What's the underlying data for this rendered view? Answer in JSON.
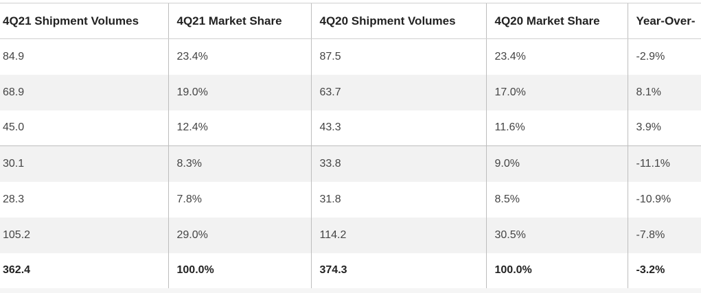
{
  "table": {
    "headers": [
      "4Q21 Shipment Volumes",
      "4Q21 Market Share",
      "4Q20 Shipment Volumes",
      "4Q20 Market Share",
      "Year-Over-"
    ],
    "rows": [
      [
        "84.9",
        "23.4%",
        "87.5",
        "23.4%",
        "-2.9%"
      ],
      [
        "68.9",
        "19.0%",
        "63.7",
        "17.0%",
        "8.1%"
      ],
      [
        "45.0",
        "12.4%",
        "43.3",
        "11.6%",
        "3.9%"
      ],
      [
        "30.1",
        "8.3%",
        "33.8",
        "9.0%",
        "-11.1%"
      ],
      [
        "28.3",
        "7.8%",
        "31.8",
        "8.5%",
        "-10.9%"
      ],
      [
        "105.2",
        "29.0%",
        "114.2",
        "30.5%",
        "-7.8%"
      ]
    ],
    "total": [
      "362.4",
      "100.0%",
      "374.3",
      "100.0%",
      "-3.2%"
    ]
  }
}
